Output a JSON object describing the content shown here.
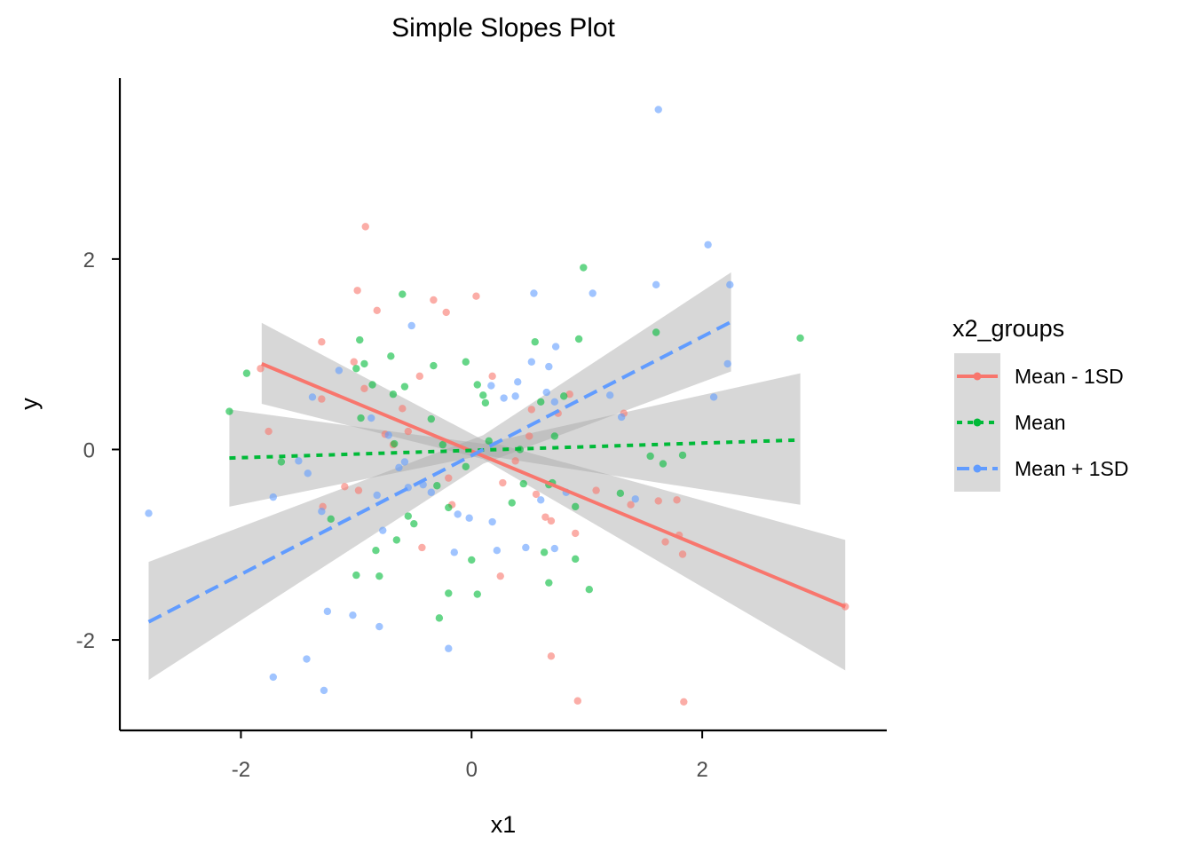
{
  "chart_data": {
    "type": "scatter",
    "title": "Simple Slopes Plot",
    "xlabel": "x1",
    "ylabel": "y",
    "xlim": [
      -3.05,
      3.6
    ],
    "ylim": [
      -2.95,
      3.9
    ],
    "xticks": [
      -2,
      0,
      2
    ],
    "yticks": [
      -2,
      0,
      2
    ],
    "xtick_labels": [
      "-2",
      "0",
      "2"
    ],
    "ytick_labels": [
      "-2",
      "0",
      "2"
    ],
    "grid": false,
    "legend": {
      "title": "x2_groups",
      "position": "right",
      "entries": [
        "Mean - 1SD",
        "Mean",
        "Mean + 1SD"
      ]
    },
    "series": [
      {
        "name": "Mean - 1SD",
        "color": "#F8766D",
        "line_style": "solid",
        "fit_line": {
          "x": [
            -1.82,
            3.24
          ],
          "y": [
            0.9,
            -1.65
          ]
        },
        "confidence_band": {
          "x": [
            -1.82,
            0.1,
            3.24
          ],
          "upper": [
            1.33,
            0.1,
            -0.95
          ],
          "lower": [
            0.48,
            -0.1,
            -2.32
          ]
        },
        "points": [
          [
            -1.83,
            0.85
          ],
          [
            -1.76,
            0.19
          ],
          [
            -1.3,
            1.13
          ],
          [
            -1.3,
            0.53
          ],
          [
            -1.29,
            -0.6
          ],
          [
            -1.1,
            -0.39
          ],
          [
            -1.02,
            0.92
          ],
          [
            -0.99,
            1.67
          ],
          [
            -0.98,
            -0.43
          ],
          [
            -0.93,
            0.64
          ],
          [
            -0.92,
            2.34
          ],
          [
            -0.82,
            1.46
          ],
          [
            -0.75,
            0.16
          ],
          [
            -0.68,
            0.05
          ],
          [
            -0.6,
            0.43
          ],
          [
            -0.55,
            0.19
          ],
          [
            -0.45,
            0.77
          ],
          [
            -0.43,
            -1.03
          ],
          [
            -0.33,
            1.57
          ],
          [
            -0.22,
            1.44
          ],
          [
            -0.2,
            -0.3
          ],
          [
            -0.17,
            -0.58
          ],
          [
            0.04,
            1.61
          ],
          [
            0.18,
            0.77
          ],
          [
            0.25,
            -1.33
          ],
          [
            0.27,
            -0.35
          ],
          [
            0.38,
            -0.12
          ],
          [
            0.5,
            0.14
          ],
          [
            0.52,
            0.42
          ],
          [
            0.56,
            -0.47
          ],
          [
            0.64,
            -0.71
          ],
          [
            0.69,
            -0.75
          ],
          [
            0.69,
            -2.17
          ],
          [
            0.75,
            0.38
          ],
          [
            0.85,
            0.58
          ],
          [
            0.9,
            -0.88
          ],
          [
            0.92,
            -2.64
          ],
          [
            1.08,
            -0.43
          ],
          [
            1.32,
            0.38
          ],
          [
            1.38,
            -0.58
          ],
          [
            1.62,
            -0.54
          ],
          [
            1.68,
            -0.97
          ],
          [
            1.78,
            -0.53
          ],
          [
            1.8,
            -0.9
          ],
          [
            1.83,
            -1.1
          ],
          [
            1.84,
            -2.65
          ],
          [
            3.24,
            -1.65
          ]
        ]
      },
      {
        "name": "Mean",
        "color": "#00BA38",
        "line_style": "dotted",
        "fit_line": {
          "x": [
            -2.1,
            2.85
          ],
          "y": [
            -0.09,
            0.1
          ]
        },
        "confidence_band": {
          "x": [
            -2.1,
            0.1,
            2.85
          ],
          "upper": [
            0.42,
            0.06,
            0.8
          ],
          "lower": [
            -0.6,
            -0.06,
            -0.58
          ]
        },
        "points": [
          [
            -2.1,
            0.4
          ],
          [
            -1.95,
            0.8
          ],
          [
            -1.65,
            -0.13
          ],
          [
            -1.22,
            -0.73
          ],
          [
            -1.0,
            -1.32
          ],
          [
            -1.0,
            0.85
          ],
          [
            -0.97,
            1.15
          ],
          [
            -0.96,
            0.33
          ],
          [
            -0.93,
            0.9
          ],
          [
            -0.86,
            0.68
          ],
          [
            -0.83,
            -1.06
          ],
          [
            -0.8,
            -1.33
          ],
          [
            -0.7,
            0.98
          ],
          [
            -0.68,
            0.58
          ],
          [
            -0.67,
            0.06
          ],
          [
            -0.65,
            -0.95
          ],
          [
            -0.6,
            1.63
          ],
          [
            -0.58,
            0.66
          ],
          [
            -0.55,
            -0.7
          ],
          [
            -0.5,
            -0.78
          ],
          [
            -0.35,
            0.32
          ],
          [
            -0.33,
            0.88
          ],
          [
            -0.3,
            -0.38
          ],
          [
            -0.28,
            -1.77
          ],
          [
            -0.25,
            0.05
          ],
          [
            -0.2,
            -0.61
          ],
          [
            -0.2,
            -1.51
          ],
          [
            -0.05,
            0.92
          ],
          [
            -0.05,
            -0.18
          ],
          [
            0.0,
            -1.16
          ],
          [
            0.05,
            0.68
          ],
          [
            0.05,
            -1.52
          ],
          [
            0.1,
            0.57
          ],
          [
            0.12,
            0.49
          ],
          [
            0.15,
            0.09
          ],
          [
            0.35,
            -0.56
          ],
          [
            0.42,
            0.0
          ],
          [
            0.45,
            -0.36
          ],
          [
            0.55,
            1.13
          ],
          [
            0.6,
            0.5
          ],
          [
            0.63,
            -1.08
          ],
          [
            0.67,
            -0.37
          ],
          [
            0.67,
            -1.4
          ],
          [
            0.7,
            -0.35
          ],
          [
            0.72,
            0.14
          ],
          [
            0.8,
            0.56
          ],
          [
            0.9,
            -1.15
          ],
          [
            0.9,
            -0.6
          ],
          [
            0.93,
            1.16
          ],
          [
            0.97,
            1.91
          ],
          [
            1.02,
            -1.47
          ],
          [
            1.29,
            -0.46
          ],
          [
            1.55,
            -0.07
          ],
          [
            1.6,
            1.23
          ],
          [
            1.66,
            -0.15
          ],
          [
            1.83,
            -0.06
          ],
          [
            2.85,
            1.17
          ]
        ]
      },
      {
        "name": "Mean + 1SD",
        "color": "#619CFF",
        "line_style": "dashed",
        "fit_line": {
          "x": [
            -2.8,
            2.25
          ],
          "y": [
            -1.81,
            1.34
          ]
        },
        "confidence_band": {
          "x": [
            -2.8,
            0.1,
            2.25
          ],
          "upper": [
            -1.18,
            0.15,
            1.86
          ],
          "lower": [
            -2.42,
            -0.15,
            0.82
          ]
        },
        "points": [
          [
            -2.8,
            -0.67
          ],
          [
            -1.72,
            -2.39
          ],
          [
            -1.72,
            -0.5
          ],
          [
            -1.5,
            -0.12
          ],
          [
            -1.42,
            -0.25
          ],
          [
            -1.43,
            -2.2
          ],
          [
            -1.38,
            0.55
          ],
          [
            -1.3,
            -0.65
          ],
          [
            -1.28,
            -2.53
          ],
          [
            -1.25,
            -1.7
          ],
          [
            -1.15,
            0.83
          ],
          [
            -1.03,
            -1.74
          ],
          [
            -0.87,
            0.33
          ],
          [
            -0.82,
            -0.48
          ],
          [
            -0.8,
            -1.86
          ],
          [
            -0.77,
            -0.85
          ],
          [
            -0.72,
            0.15
          ],
          [
            -0.63,
            -0.19
          ],
          [
            -0.58,
            -0.13
          ],
          [
            -0.55,
            -0.4
          ],
          [
            -0.52,
            1.3
          ],
          [
            -0.42,
            -0.37
          ],
          [
            -0.35,
            -0.45
          ],
          [
            -0.2,
            -2.09
          ],
          [
            -0.15,
            -1.08
          ],
          [
            -0.12,
            -0.68
          ],
          [
            -0.02,
            -0.72
          ],
          [
            0.17,
            0.67
          ],
          [
            0.18,
            -0.76
          ],
          [
            0.22,
            -1.06
          ],
          [
            0.28,
            0.54
          ],
          [
            0.38,
            0.56
          ],
          [
            0.4,
            0.71
          ],
          [
            0.47,
            -1.03
          ],
          [
            0.52,
            0.92
          ],
          [
            0.54,
            1.64
          ],
          [
            0.6,
            -0.53
          ],
          [
            0.65,
            0.6
          ],
          [
            0.67,
            0.87
          ],
          [
            0.72,
            -1.04
          ],
          [
            0.72,
            0.5
          ],
          [
            0.73,
            1.08
          ],
          [
            0.82,
            -0.45
          ],
          [
            1.05,
            1.64
          ],
          [
            1.2,
            0.57
          ],
          [
            1.3,
            0.34
          ],
          [
            1.42,
            -0.52
          ],
          [
            1.6,
            1.73
          ],
          [
            1.62,
            3.57
          ],
          [
            2.05,
            2.15
          ],
          [
            2.1,
            0.55
          ],
          [
            2.22,
            0.9
          ],
          [
            2.24,
            1.73
          ]
        ]
      }
    ]
  }
}
